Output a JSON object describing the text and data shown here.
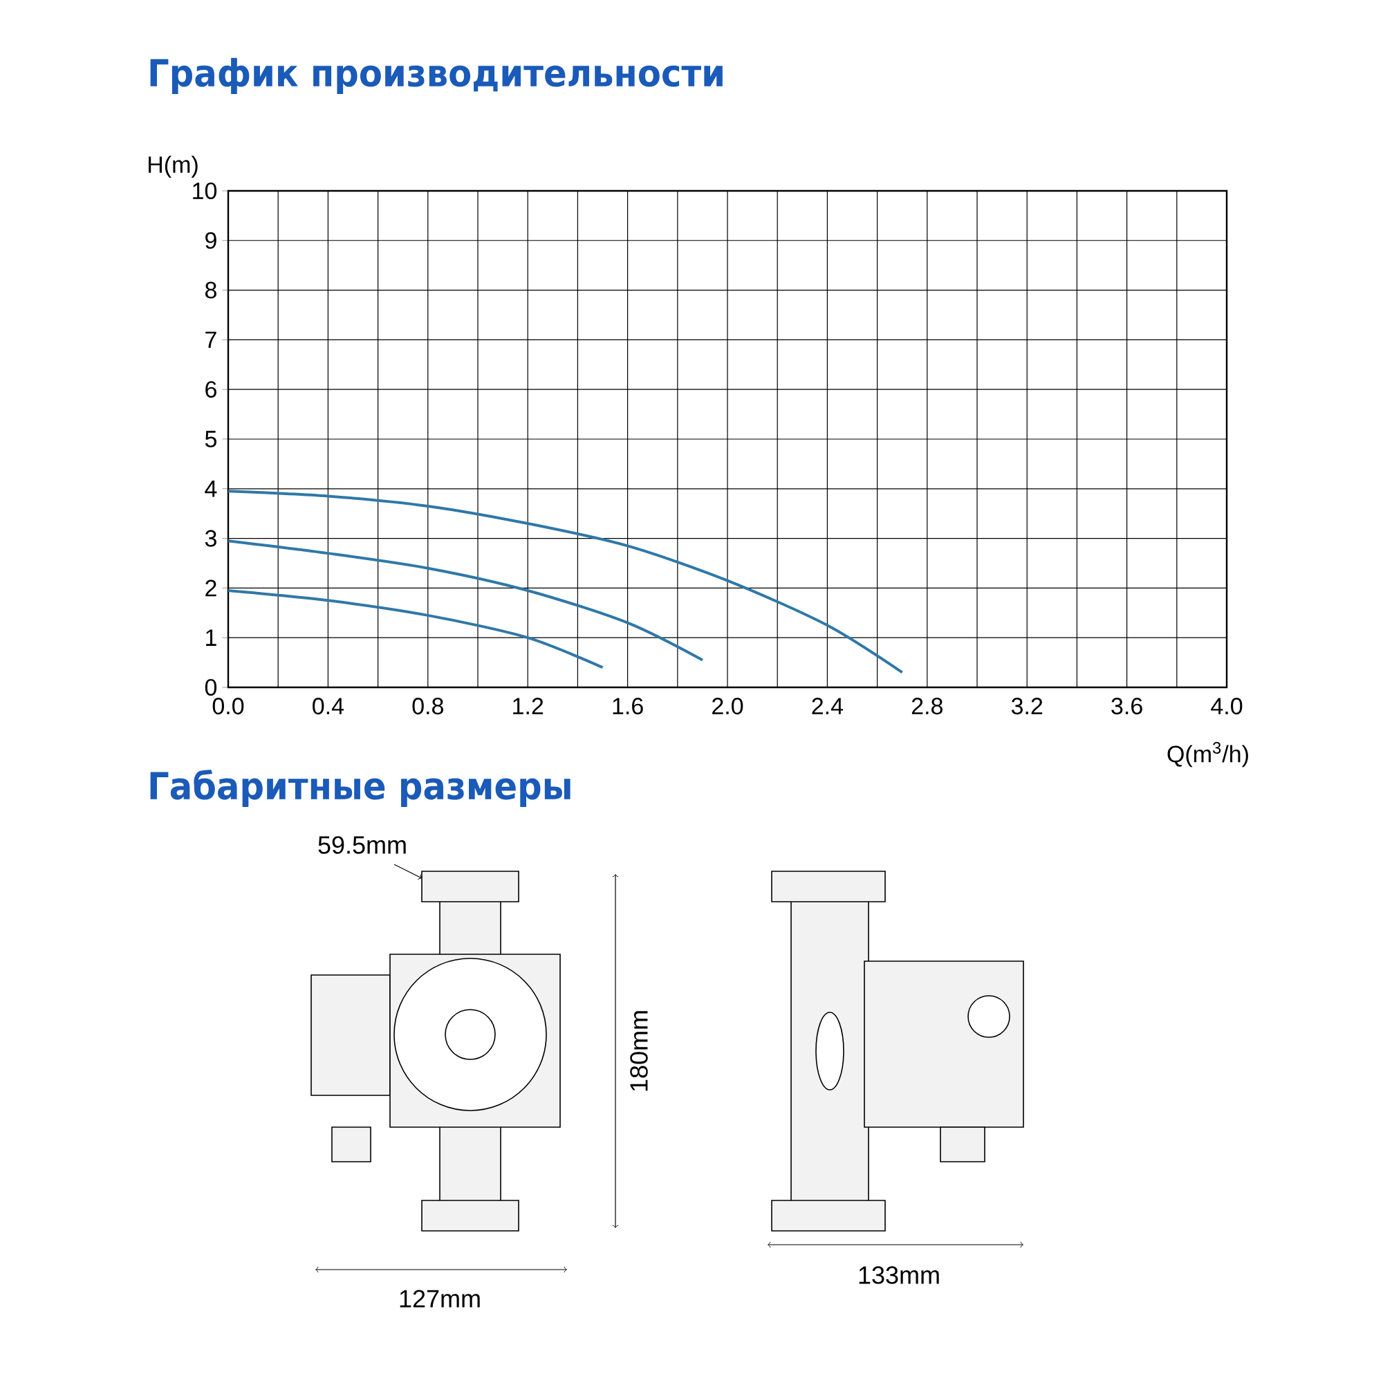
{
  "chart_data": {
    "type": "line",
    "title": "График производительности",
    "xlabel": "Q(m$^{3}$/h)",
    "ylabel": "H(m)",
    "xlim": [
      0,
      4
    ],
    "ylim": [
      0,
      10
    ],
    "xticks": [
      {
        "value": 0,
        "label": "0.0"
      },
      {
        "value": 0.2,
        "label": null
      },
      {
        "value": 0.4,
        "label": "0.4"
      },
      {
        "value": 0.6,
        "label": null
      },
      {
        "value": 0.8,
        "label": "0.8"
      },
      {
        "value": 1.0,
        "label": null
      },
      {
        "value": 1.2,
        "label": "1.2"
      },
      {
        "value": 1.4,
        "label": null
      },
      {
        "value": 1.6,
        "label": "1.6"
      },
      {
        "value": 1.8,
        "label": null
      },
      {
        "value": 2.0,
        "label": "2.0"
      },
      {
        "value": 2.2,
        "label": null
      },
      {
        "value": 2.4,
        "label": "2.4"
      },
      {
        "value": 2.6,
        "label": null
      },
      {
        "value": 2.8,
        "label": "2.8"
      },
      {
        "value": 3.0,
        "label": null
      },
      {
        "value": 3.2,
        "label": "3.2"
      },
      {
        "value": 3.4,
        "label": null
      },
      {
        "value": 3.6,
        "label": "3.6"
      },
      {
        "value": 3.8,
        "label": null
      },
      {
        "value": 4.0,
        "label": "4.0"
      }
    ],
    "yticks": [
      0,
      1,
      2,
      3,
      4,
      5,
      6,
      7,
      8,
      9,
      10
    ],
    "grid": true,
    "series": [
      {
        "color": "#2f78a8",
        "x": [
          0,
          0.4,
          0.8,
          1.2,
          1.6,
          2.0,
          2.4,
          2.7
        ],
        "values": [
          3.95,
          3.85,
          3.65,
          3.3,
          2.85,
          2.15,
          1.25,
          0.3
        ]
      },
      {
        "color": "#2f78a8",
        "x": [
          0,
          0.4,
          0.8,
          1.2,
          1.6,
          1.9
        ],
        "values": [
          2.95,
          2.7,
          2.4,
          1.95,
          1.3,
          0.55
        ]
      },
      {
        "color": "#2f78a8",
        "x": [
          0,
          0.4,
          0.8,
          1.2,
          1.5
        ],
        "values": [
          1.95,
          1.75,
          1.45,
          1.0,
          0.4
        ]
      }
    ],
    "annotations": [
      "Габаритные размеры",
      "59.5mm",
      "180mm",
      "127mm",
      "133mm"
    ]
  }
}
